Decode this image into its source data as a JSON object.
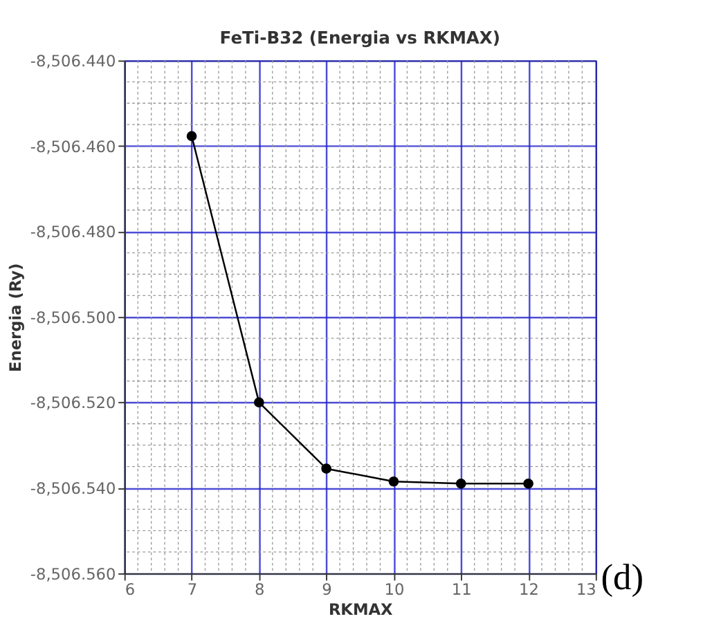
{
  "chart_data": {
    "type": "line",
    "title": "FeTi-B32 (Energia vs RKMAX)",
    "xlabel": "RKMAX",
    "ylabel": "Energia (Ry)",
    "x": [
      7,
      8,
      9,
      10,
      11,
      12
    ],
    "series": [
      {
        "color": "#000000",
        "values": [
          -8506.4577,
          -8506.52,
          -8506.5355,
          -8506.5385,
          -8506.539,
          -8506.539
        ]
      }
    ],
    "xlim": [
      6,
      13
    ],
    "xticks": [
      6,
      7,
      8,
      9,
      10,
      11,
      12,
      13
    ],
    "ylim": [
      -8506.56,
      -8506.44
    ],
    "yticks": [
      {
        "value": -8506.56,
        "label": "-8,506.560"
      },
      {
        "value": -8506.54,
        "label": "-8,506.540"
      },
      {
        "value": -8506.52,
        "label": "-8,506.520"
      },
      {
        "value": -8506.5,
        "label": "-8,506.500"
      },
      {
        "value": -8506.48,
        "label": "-8,506.480"
      },
      {
        "value": -8506.46,
        "label": "-8,506.460"
      },
      {
        "value": -8506.44,
        "label": "-8,506.440"
      }
    ],
    "grid": true,
    "marker": "circle",
    "line_style": "solid",
    "annotations": [
      "(d)"
    ]
  }
}
